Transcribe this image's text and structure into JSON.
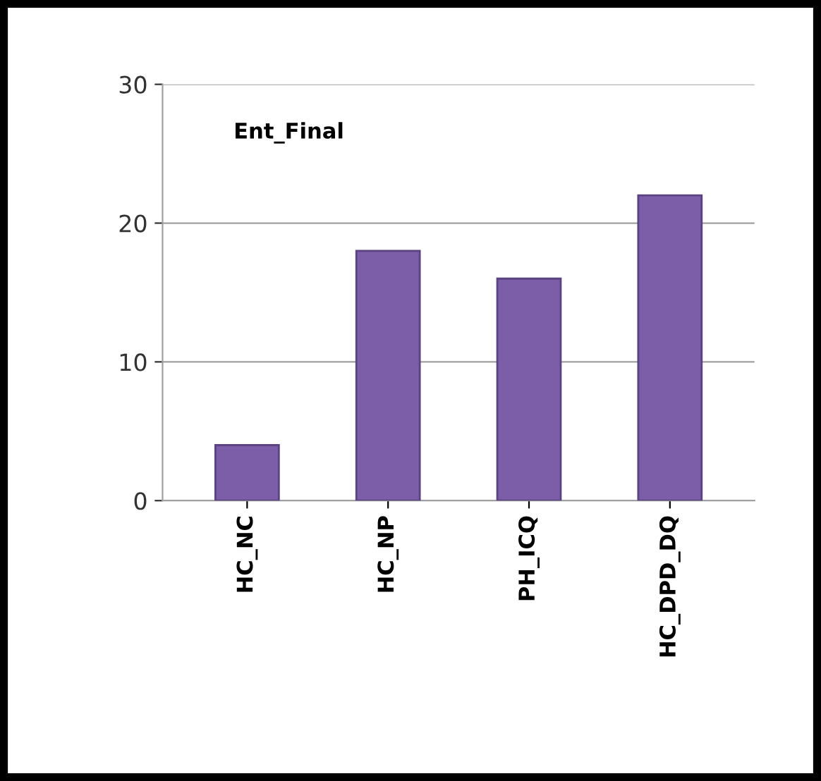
{
  "chart_data": {
    "type": "bar",
    "title": "Ent_Final",
    "categories": [
      "HC_NC",
      "HC_NP",
      "PH_ICQ",
      "HC_DPD_DQ"
    ],
    "values": [
      4,
      18,
      16,
      22
    ],
    "color": "#7b5ea7",
    "ylim": [
      0,
      30
    ],
    "yticks": [
      0,
      10,
      20,
      30
    ],
    "grid": "y"
  }
}
